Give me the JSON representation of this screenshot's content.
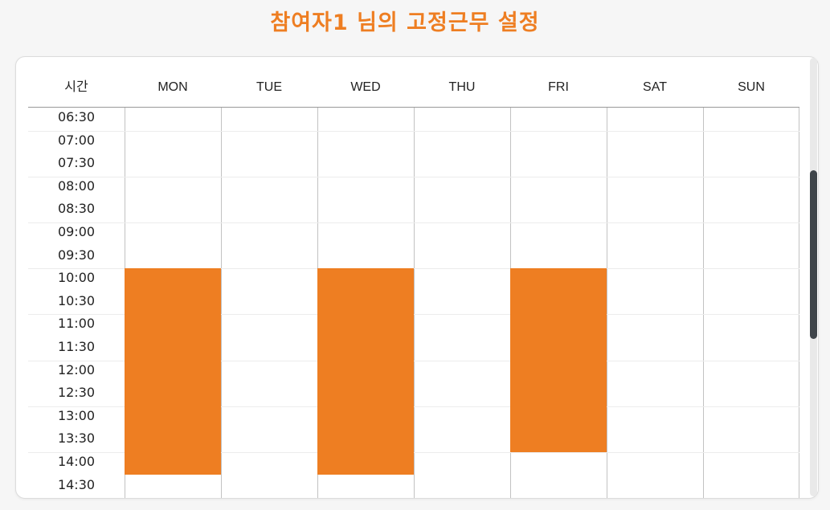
{
  "page": {
    "title": "참여자1 님의 고정근무 설정"
  },
  "schedule": {
    "time_header": "시간",
    "days": [
      "MON",
      "TUE",
      "WED",
      "THU",
      "FRI",
      "SAT",
      "SUN"
    ],
    "times": [
      "06:30",
      "07:00",
      "07:30",
      "08:00",
      "08:30",
      "09:00",
      "09:30",
      "10:00",
      "10:30",
      "11:00",
      "11:30",
      "12:00",
      "12:30",
      "13:00",
      "13:30",
      "14:00",
      "14:30"
    ],
    "accent_color": "#ee7e22",
    "fixed_shifts": [
      {
        "day": "MON",
        "start": "10:00",
        "end": "14:30"
      },
      {
        "day": "WED",
        "start": "10:00",
        "end": "14:30"
      },
      {
        "day": "FRI",
        "start": "10:00",
        "end": "14:00"
      }
    ]
  }
}
